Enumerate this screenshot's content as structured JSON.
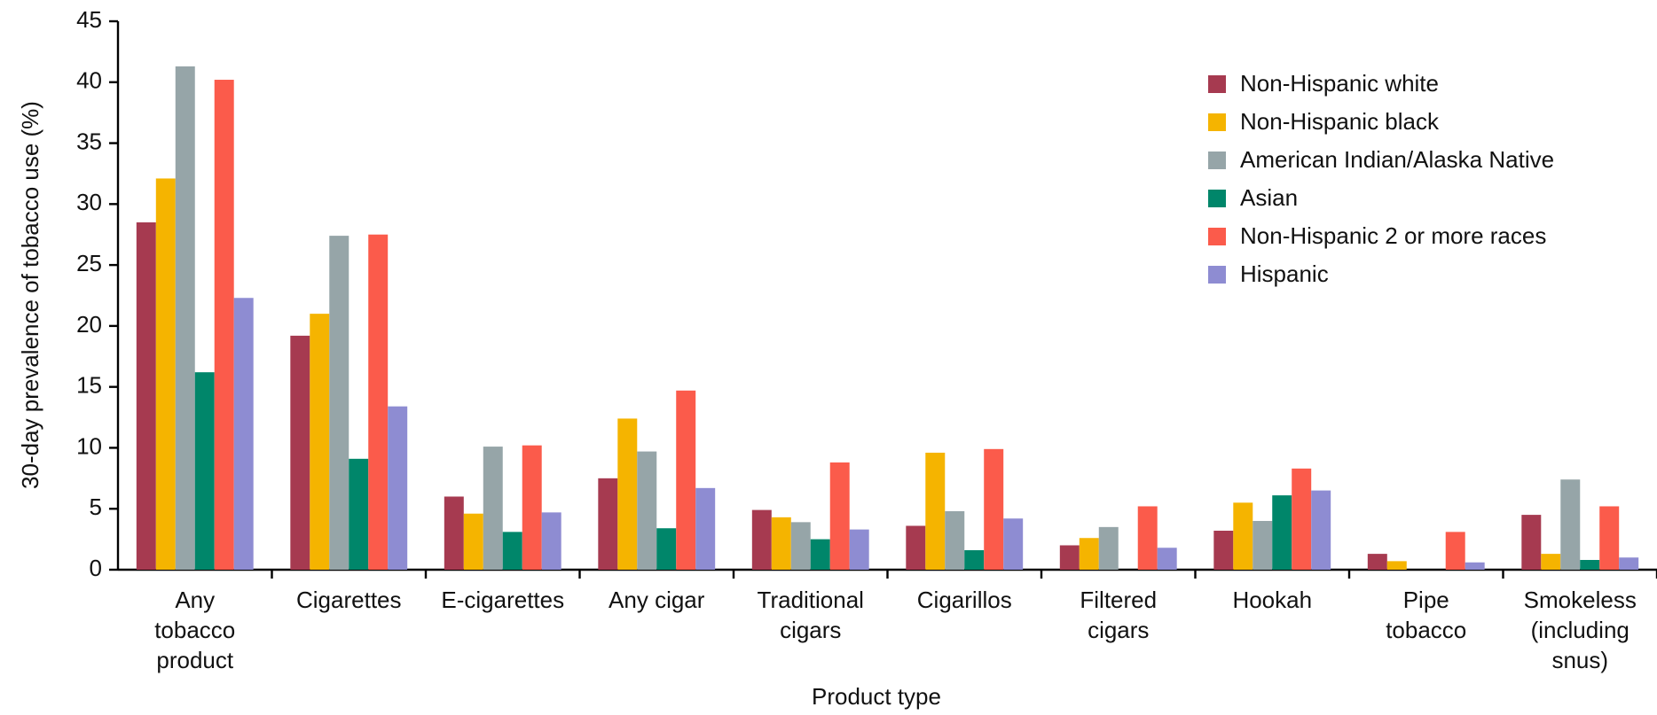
{
  "chart_data": {
    "type": "bar",
    "y_label": "30-day prevalence of tobacco use (%)",
    "x_label": "Product type",
    "categories": [
      "Any\ntobacco\nproduct",
      "Cigarettes",
      "E-cigarettes",
      "Any cigar",
      "Traditional\ncigars",
      "Cigarillos",
      "Filtered\ncigars",
      "Hookah",
      "Pipe\ntobacco",
      "Smokeless\n(including\nsnus)"
    ],
    "series": [
      {
        "name": "Non-Hispanic white",
        "color": "#a63a50",
        "values": [
          28.5,
          19.2,
          6.0,
          7.5,
          4.9,
          3.6,
          2.0,
          3.2,
          1.3,
          4.5
        ]
      },
      {
        "name": "Non-Hispanic black",
        "color": "#f5b400",
        "values": [
          32.1,
          21.0,
          4.6,
          12.4,
          4.3,
          9.6,
          2.6,
          5.5,
          0.7,
          1.3
        ]
      },
      {
        "name": "American Indian/Alaska Native",
        "color": "#96a5a8",
        "values": [
          41.3,
          27.4,
          10.1,
          9.7,
          3.9,
          4.8,
          3.5,
          4.0,
          null,
          7.4
        ]
      },
      {
        "name": "Asian",
        "color": "#00866a",
        "values": [
          16.2,
          9.1,
          3.1,
          3.4,
          2.5,
          1.6,
          null,
          6.1,
          null,
          0.8
        ]
      },
      {
        "name": "Non-Hispanic 2 or more races",
        "color": "#fb5b4b",
        "values": [
          40.2,
          27.5,
          10.2,
          14.7,
          8.8,
          9.9,
          5.2,
          8.3,
          3.1,
          5.2
        ]
      },
      {
        "name": "Hispanic",
        "color": "#8e8cd2",
        "values": [
          22.3,
          13.4,
          4.7,
          6.7,
          3.3,
          4.2,
          1.8,
          6.5,
          0.6,
          1.0
        ]
      }
    ],
    "ylim": [
      0,
      45
    ],
    "yticks": [
      0,
      5,
      10,
      15,
      20,
      25,
      30,
      35,
      40,
      45
    ],
    "grid": false,
    "legend": "top-right"
  }
}
